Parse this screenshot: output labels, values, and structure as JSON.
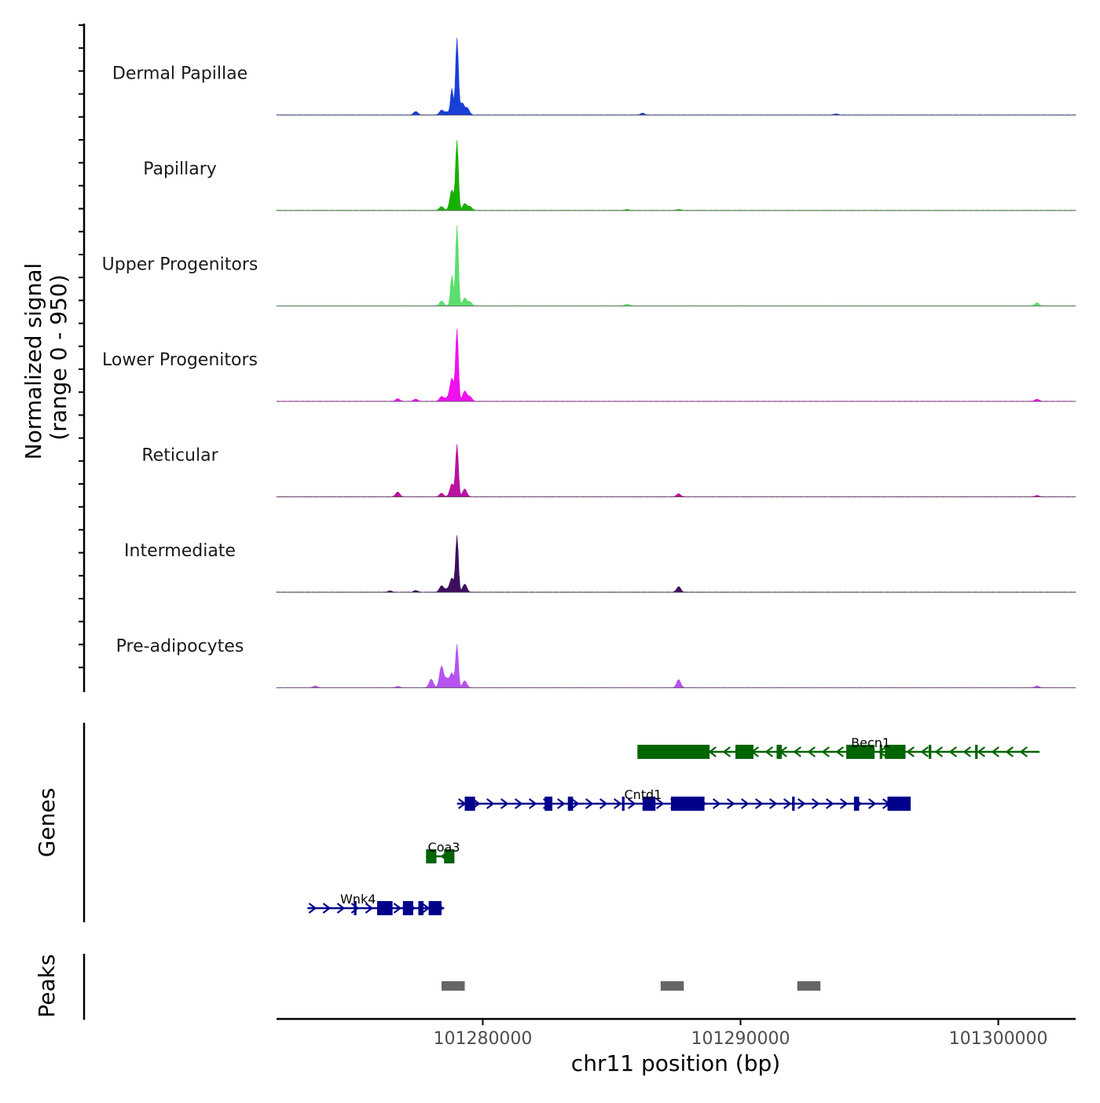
{
  "chart_data": {
    "type": "area",
    "title": "",
    "ylabel_line1": "Normalized signal",
    "ylabel_line2": "(range 0 - 950)",
    "ylim": [
      0,
      950
    ],
    "xlabel": "chr11 position (bp)",
    "xlim": [
      101272000,
      101303000
    ],
    "x_ticks": [
      101280000,
      101290000,
      101300000
    ],
    "x_tick_labels": [
      "101280000",
      "101290000",
      "101300000"
    ],
    "tracks": [
      {
        "name": "Dermal Papillae",
        "color": "#1a3fd6",
        "peaks": [
          [
            101277400,
            40
          ],
          [
            101278400,
            55
          ],
          [
            101278600,
            35
          ],
          [
            101278800,
            310
          ],
          [
            101279000,
            900
          ],
          [
            101279200,
            140
          ],
          [
            101279400,
            80
          ],
          [
            101286200,
            20
          ],
          [
            101293700,
            12
          ]
        ]
      },
      {
        "name": "Papillary",
        "color": "#18b000",
        "peaks": [
          [
            101278400,
            45
          ],
          [
            101278800,
            240
          ],
          [
            101279000,
            810
          ],
          [
            101279300,
            80
          ],
          [
            101279500,
            45
          ],
          [
            101285600,
            10
          ],
          [
            101287600,
            10
          ]
        ]
      },
      {
        "name": "Upper Progenitors",
        "color": "#5cde6e",
        "peaks": [
          [
            101278400,
            55
          ],
          [
            101278800,
            360
          ],
          [
            101279000,
            950
          ],
          [
            101279300,
            90
          ],
          [
            101279500,
            45
          ],
          [
            101285600,
            20
          ],
          [
            101301500,
            35
          ]
        ]
      },
      {
        "name": "Lower Progenitors",
        "color": "#ee10ee",
        "peaks": [
          [
            101276700,
            30
          ],
          [
            101277400,
            25
          ],
          [
            101278400,
            55
          ],
          [
            101278600,
            35
          ],
          [
            101278800,
            270
          ],
          [
            101279000,
            840
          ],
          [
            101279300,
            120
          ],
          [
            101279500,
            55
          ],
          [
            101301500,
            25
          ]
        ]
      },
      {
        "name": "Reticular",
        "color": "#b8129f",
        "peaks": [
          [
            101276700,
            55
          ],
          [
            101278400,
            40
          ],
          [
            101278800,
            150
          ],
          [
            101279000,
            610
          ],
          [
            101279300,
            90
          ],
          [
            101287600,
            35
          ],
          [
            101301500,
            15
          ]
        ]
      },
      {
        "name": "Intermediate",
        "color": "#3d0e5e",
        "peaks": [
          [
            101276400,
            15
          ],
          [
            101277400,
            20
          ],
          [
            101278400,
            75
          ],
          [
            101278600,
            35
          ],
          [
            101278800,
            165
          ],
          [
            101279000,
            660
          ],
          [
            101279300,
            95
          ],
          [
            101287600,
            65
          ]
        ]
      },
      {
        "name": "Pre-adipocytes",
        "color": "#b653ee",
        "peaks": [
          [
            101273500,
            20
          ],
          [
            101276700,
            15
          ],
          [
            101278000,
            100
          ],
          [
            101278400,
            250
          ],
          [
            101278600,
            100
          ],
          [
            101278800,
            170
          ],
          [
            101279000,
            500
          ],
          [
            101279300,
            80
          ],
          [
            101287600,
            95
          ],
          [
            101301500,
            20
          ]
        ]
      }
    ],
    "genes_label": "Genes",
    "genes": [
      {
        "name": "Becn1",
        "strand": "-",
        "color": "#006400",
        "start": 101286000,
        "end": 101301600,
        "exons": [
          [
            101286000,
            101288800
          ],
          [
            101289800,
            101290500
          ],
          [
            101291400,
            101291600
          ],
          [
            101294100,
            101295200
          ],
          [
            101295400,
            101295500
          ],
          [
            101295600,
            101296400
          ],
          [
            101297300,
            101297400
          ],
          [
            101299100,
            101299200
          ]
        ]
      },
      {
        "name": "Cntd1",
        "strand": "+",
        "color": "#00008b",
        "start": 101279000,
        "end": 101296600,
        "exons": [
          [
            101279300,
            101279700
          ],
          [
            101282400,
            101282700
          ],
          [
            101283300,
            101283500
          ],
          [
            101285400,
            101285500
          ],
          [
            101286200,
            101286700
          ],
          [
            101287300,
            101288600
          ],
          [
            101292000,
            101292100
          ],
          [
            101294400,
            101294600
          ],
          [
            101295700,
            101296600
          ]
        ]
      },
      {
        "name": "Coa3",
        "strand": "-",
        "color": "#006400",
        "start": 101277800,
        "end": 101278900,
        "exons": [
          [
            101277800,
            101278200
          ],
          [
            101278500,
            101278900
          ]
        ]
      },
      {
        "name": "Wnk4",
        "strand": "+",
        "color": "#00008b",
        "start": 101273200,
        "end": 101278500,
        "exons": [
          [
            101275000,
            101275100
          ],
          [
            101275900,
            101276500
          ],
          [
            101276900,
            101277300
          ],
          [
            101277500,
            101277700
          ],
          [
            101277900,
            101278400
          ]
        ]
      }
    ],
    "peaks_label": "Peaks",
    "peak_regions": [
      [
        101278400,
        101279300
      ],
      [
        101286900,
        101287800
      ],
      [
        101292200,
        101293100
      ]
    ]
  }
}
